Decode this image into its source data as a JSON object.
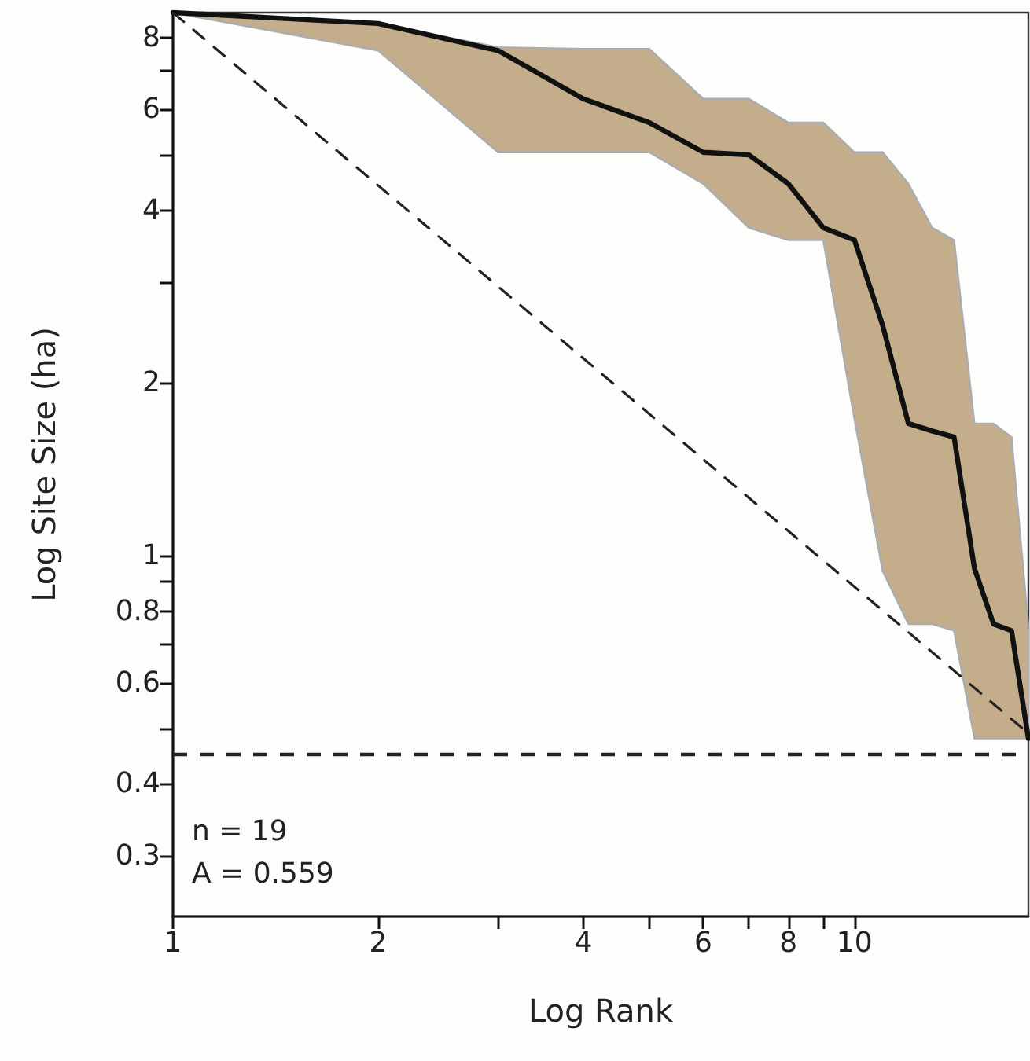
{
  "chart_data": {
    "type": "line",
    "xlabel": "Log Rank",
    "ylabel": "Log Site Size (ha)",
    "log": "xy",
    "marker": "none",
    "annotations": [
      "n = 19",
      "A = 0.559"
    ],
    "xlim": [
      1,
      18
    ],
    "ylim": [
      0.235,
      8.85
    ],
    "xticks": [
      1,
      2,
      {
        "value": 3,
        "label": null
      },
      4,
      {
        "value": 5,
        "label": null
      },
      6,
      {
        "value": 7,
        "label": null
      },
      8,
      {
        "value": 9,
        "label": null
      },
      10
    ],
    "yticks": [
      0.3,
      0.4,
      {
        "value": 0.5,
        "label": null
      },
      0.6,
      {
        "value": 0.7,
        "label": null
      },
      0.8,
      {
        "value": 0.9,
        "label": null
      },
      1,
      2,
      {
        "value": 3,
        "label": null
      },
      4,
      {
        "value": 5,
        "label": null
      },
      6,
      {
        "value": 7,
        "label": null
      },
      8
    ],
    "x": [
      1,
      2,
      3,
      4,
      5,
      6,
      7,
      8,
      9,
      10,
      11,
      12,
      13,
      14,
      15,
      16,
      17,
      18
    ],
    "series": [
      {
        "color": "#111111",
        "line_style": "solid",
        "values": [
          8.85,
          8.47,
          7.6,
          6.26,
          5.69,
          5.05,
          5.0,
          4.45,
          3.73,
          3.55,
          2.52,
          1.7,
          1.65,
          1.61,
          0.95,
          0.76,
          0.74,
          0.48
        ],
        "lower": [
          8.85,
          7.6,
          5.05,
          5.05,
          5.05,
          4.45,
          3.73,
          3.55,
          3.55,
          1.73,
          0.94,
          0.76,
          0.76,
          0.74,
          0.48,
          0.48,
          0.48,
          0.48
        ],
        "upper": [
          8.85,
          8.47,
          7.7,
          7.65,
          7.65,
          6.26,
          6.26,
          5.69,
          5.69,
          5.05,
          5.05,
          4.45,
          3.73,
          3.55,
          1.7,
          1.7,
          1.61,
          0.75
        ]
      },
      {
        "type": "line",
        "color": "#222222",
        "line_style": "dashed",
        "x": [
          1,
          18
        ],
        "values": [
          8.85,
          0.49
        ]
      }
    ],
    "ref_lines": [
      {
        "axis": "y",
        "value": 0.452,
        "color": "#222222",
        "line_style": "dashed"
      }
    ]
  }
}
